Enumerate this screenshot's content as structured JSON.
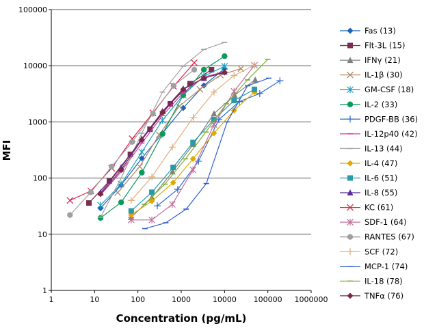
{
  "chart_data": {
    "type": "line",
    "title": "",
    "xlabel": "Concentration (pg/mL)",
    "ylabel": "MFI",
    "x_scale": "log",
    "y_scale": "log",
    "xlim": [
      1,
      1000000
    ],
    "ylim": [
      1,
      100000
    ],
    "x_ticks": [
      "1",
      "10",
      "100",
      "1000",
      "10000",
      "100000",
      "1000000"
    ],
    "y_ticks": [
      "1",
      "10",
      "100",
      "1000",
      "10000",
      "100000"
    ],
    "grid": "horizontal major",
    "legend_position": "right",
    "series": [
      {
        "name": "Fas (13)",
        "color": "#1a63b8",
        "marker": "diamond",
        "x": [
          13.7,
          41,
          123,
          370,
          1111,
          3333,
          10000
        ],
        "y": [
          29,
          75,
          225,
          630,
          1770,
          4450,
          8900
        ]
      },
      {
        "name": "Flt-3L (15)",
        "color": "#7b2d4f",
        "marker": "square",
        "x": [
          7.4,
          22,
          67,
          190,
          560,
          1600,
          5000
        ],
        "y": [
          36,
          89,
          265,
          740,
          2100,
          4800,
          8500
        ]
      },
      {
        "name": "IFNγ (21)",
        "color": "#808080",
        "marker": "triangle",
        "x": [
          70,
          210,
          630,
          1900,
          5700,
          17000,
          51000
        ],
        "y": [
          20,
          45,
          130,
          400,
          1400,
          3000,
          5600
        ]
      },
      {
        "name": "IL-1β (30)",
        "color": "#b08a68",
        "marker": "x",
        "x": [
          34,
          110,
          310,
          900,
          2700,
          8000,
          24000
        ],
        "y": [
          55,
          160,
          590,
          1900,
          3800,
          6800,
          8900
        ]
      },
      {
        "name": "GM-CSF (18)",
        "color": "#1fa0c0",
        "marker": "asterisk",
        "x": [
          13.7,
          41,
          123,
          370,
          1111,
          3333,
          10000
        ],
        "y": [
          33,
          78,
          290,
          1070,
          3000,
          6500,
          9800
        ]
      },
      {
        "name": "IL-2 (33)",
        "color": "#0a9a5a",
        "marker": "circle",
        "x": [
          13.7,
          41,
          123,
          370,
          1111,
          3333,
          10000
        ],
        "y": [
          19.5,
          37,
          125,
          610,
          3000,
          8500,
          14800
        ]
      },
      {
        "name": "PDGF-BB (36)",
        "color": "#2a6ed0",
        "marker": "plus",
        "x": [
          280,
          830,
          2500,
          7400,
          22000,
          65000,
          190000
        ],
        "y": [
          32,
          63,
          200,
          1100,
          2300,
          3200,
          5400
        ]
      },
      {
        "name": "IL-12p40 (42)",
        "color": "#d13bb0",
        "marker": "dash",
        "x": [
          13.7,
          41,
          123,
          370,
          1111,
          3333,
          10000
        ],
        "y": [
          50,
          130,
          420,
          1300,
          3300,
          6300,
          7800
        ]
      },
      {
        "name": "IL-13 (44)",
        "color": "#a0a0a0",
        "marker": "dash",
        "x": [
          13.7,
          41,
          123,
          370,
          1111,
          3333,
          10000
        ],
        "y": [
          20,
          100,
          630,
          3400,
          9800,
          19500,
          26000
        ]
      },
      {
        "name": "IL-4 (47)",
        "color": "#e0a800",
        "marker": "diamond",
        "x": [
          70,
          210,
          650,
          1870,
          5700,
          16600,
          49000
        ],
        "y": [
          22,
          39,
          83,
          220,
          630,
          1600,
          3400
        ]
      },
      {
        "name": "IL-6 (51)",
        "color": "#2a9aa8",
        "marker": "square",
        "x": [
          70,
          210,
          650,
          1870,
          5700,
          16600,
          49000
        ],
        "y": [
          26,
          56,
          155,
          430,
          1100,
          2400,
          3800
        ]
      },
      {
        "name": "IL-8 (55)",
        "color": "#5a2d9a",
        "marker": "triangle",
        "x": [
          13.7,
          41,
          123,
          370,
          1111,
          3333,
          10000
        ],
        "y": [
          55,
          155,
          500,
          1540,
          3900,
          6000,
          7800
        ]
      },
      {
        "name": "KC (61)",
        "color": "#e0204a",
        "marker": "x",
        "x": [
          2.7,
          8.2,
          24.7,
          74,
          222,
          667,
          2000
        ],
        "y": [
          40,
          59,
          150,
          500,
          1450,
          4300,
          11300
        ]
      },
      {
        "name": "SDF-1 (64)",
        "color": "#c06e9a",
        "marker": "asterisk",
        "x": [
          70,
          210,
          620,
          1870,
          5700,
          16600,
          49000
        ],
        "y": [
          18,
          18,
          34,
          140,
          900,
          3500,
          10200
        ]
      },
      {
        "name": "RANTES (67)",
        "color": "#a0a0a0",
        "marker": "circle",
        "x": [
          2.7,
          8.2,
          24.7,
          74,
          222,
          667,
          2000
        ],
        "y": [
          22,
          56,
          160,
          440,
          1400,
          4400,
          8500
        ]
      },
      {
        "name": "SCF (72)",
        "color": "#e0b080",
        "marker": "plus",
        "x": [
          70,
          210,
          620,
          1900,
          5700,
          16600,
          49000
        ],
        "y": [
          40,
          105,
          355,
          1200,
          3400,
          6700,
          10200
        ]
      },
      {
        "name": "MCP-1 (74)",
        "color": "#3060d0",
        "marker": "dash",
        "x": [
          145,
          440,
          1300,
          3800,
          11500,
          34000,
          105000
        ],
        "y": [
          12.6,
          16,
          28,
          80,
          1000,
          4400,
          6000
        ]
      },
      {
        "name": "IL-18 (78)",
        "color": "#7ab030",
        "marker": "dash",
        "x": [
          140,
          420,
          1250,
          3700,
          11000,
          34000,
          100000
        ],
        "y": [
          34,
          78,
          220,
          660,
          2100,
          5600,
          13000
        ]
      },
      {
        "name": "TNFα (76)",
        "color": "#7a2a40",
        "marker": "diamond",
        "x": [
          13.7,
          41,
          123,
          370,
          1111,
          3333,
          10000
        ],
        "y": [
          52,
          140,
          480,
          1500,
          3800,
          6000,
          7600
        ]
      }
    ]
  }
}
